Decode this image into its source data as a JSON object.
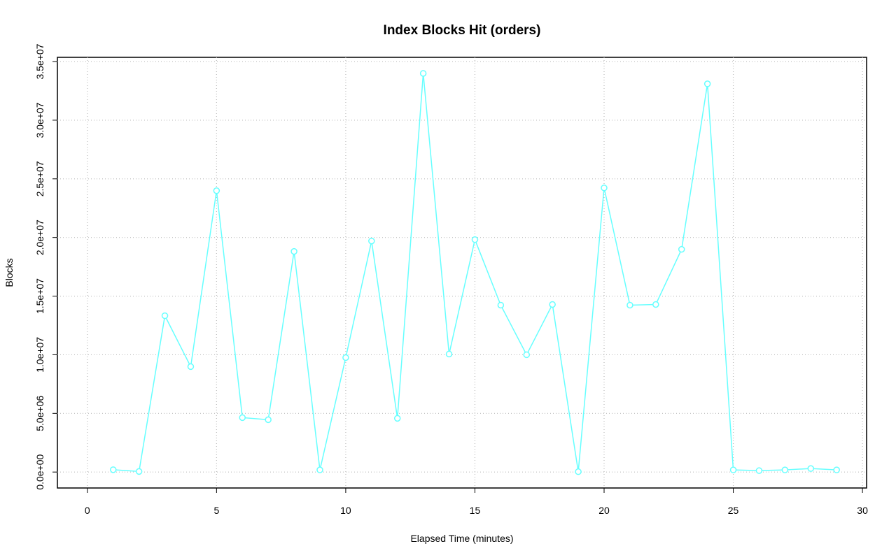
{
  "chart_data": {
    "type": "line",
    "title": "Index Blocks Hit (orders)",
    "x_label": "Elapsed Time (minutes)",
    "y_label": "Blocks",
    "x": [
      1,
      2,
      3,
      4,
      5,
      6,
      7,
      8,
      9,
      10,
      11,
      12,
      13,
      14,
      15,
      16,
      17,
      18,
      19,
      20,
      21,
      22,
      23,
      24,
      25,
      26,
      27,
      28,
      29
    ],
    "series": [
      {
        "name": "orders",
        "color": "#66ffff",
        "values": [
          200000,
          50000,
          13330000,
          8990000,
          23990000,
          4640000,
          4460000,
          18810000,
          180000,
          9760000,
          19700000,
          4580000,
          33990000,
          10060000,
          19820000,
          14230000,
          10000000,
          14290000,
          30000,
          24230000,
          14230000,
          14290000,
          18990000,
          33100000,
          180000,
          120000,
          180000,
          300000,
          180000
        ]
      }
    ],
    "xlim": [
      -1.16,
      30.16
    ],
    "ylim": [
      -1360000,
      35360000
    ],
    "xticks": [
      0,
      5,
      10,
      15,
      20,
      25,
      30
    ],
    "yticks": [
      {
        "value": 0,
        "label": "0.0e+00"
      },
      {
        "value": 5000000,
        "label": "5.0e+06"
      },
      {
        "value": 10000000,
        "label": "1.0e+07"
      },
      {
        "value": 15000000,
        "label": "1.5e+07"
      },
      {
        "value": 20000000,
        "label": "2.0e+07"
      },
      {
        "value": 25000000,
        "label": "2.5e+07"
      },
      {
        "value": 30000000,
        "label": "3.0e+07"
      },
      {
        "value": 35000000,
        "label": "3.5e+07"
      }
    ],
    "grid": true
  }
}
